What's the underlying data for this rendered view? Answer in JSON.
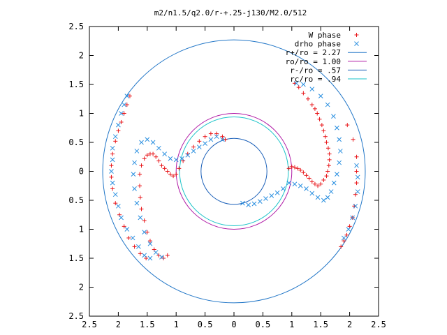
{
  "chart_data": {
    "type": "scatter",
    "title": "m2/n1.5/q2.0/r-+.25-j130/M2.0/512",
    "xlabel": "",
    "ylabel": "",
    "xlim": [
      -2.5,
      2.5
    ],
    "ylim": [
      -2.5,
      2.5
    ],
    "x_ticks": [
      -2.5,
      -2,
      -1.5,
      -1,
      -0.5,
      0,
      0.5,
      1,
      1.5,
      2,
      2.5
    ],
    "x_tick_labels": [
      "2.5",
      "2",
      "1.5",
      "1",
      "0.5",
      "0",
      "0.5",
      "1",
      "1.5",
      "2",
      "2.5"
    ],
    "y_ticks": [
      2.5,
      2,
      1.5,
      1,
      0.5,
      0,
      -0.5,
      -1,
      -1.5,
      -2,
      -2.5
    ],
    "y_tick_labels": [
      "2.5",
      "2",
      "1.5",
      "1",
      "0.5",
      "0",
      "0.5",
      "1",
      "1.5",
      "2",
      "2.5"
    ],
    "grid": false,
    "legend_position": "top-right",
    "legend": [
      {
        "label": "W phase",
        "kind": "point",
        "symbol": "plus",
        "color": "#e8161a"
      },
      {
        "label": "drho phase",
        "kind": "point",
        "symbol": "cross",
        "color": "#2a8fe0"
      },
      {
        "label": "r+/ro = 2.27",
        "kind": "line",
        "color": "#2176c7"
      },
      {
        "label": "ro/ro = 1.00",
        "kind": "line",
        "color": "#b01aa6"
      },
      {
        "label": "r-/ro = .57",
        "kind": "line",
        "color": "#1a5fb8"
      },
      {
        "label": "rc/ro = .94",
        "kind": "line",
        "color": "#19c3c8"
      }
    ],
    "circles": [
      {
        "name": "r+/ro",
        "radius": 2.27,
        "color": "#2176c7"
      },
      {
        "name": "ro/ro",
        "radius": 1.0,
        "color": "#b01aa6"
      },
      {
        "name": "r-/ro",
        "radius": 0.57,
        "color": "#1a5fb8"
      },
      {
        "name": "rc/ro",
        "radius": 0.94,
        "color": "#19c3c8"
      }
    ],
    "series": [
      {
        "name": "W phase",
        "color": "#e8161a",
        "symbol": "plus",
        "points": [
          [
            1.85,
            -1.3
          ],
          [
            1.9,
            -1.2
          ],
          [
            1.95,
            -1.1
          ],
          [
            2.0,
            -0.95
          ],
          [
            2.05,
            -0.8
          ],
          [
            2.08,
            -0.6
          ],
          [
            2.1,
            -0.4
          ],
          [
            2.12,
            -0.2
          ],
          [
            2.12,
            0.0
          ],
          [
            2.12,
            0.25
          ],
          [
            2.06,
            0.55
          ],
          [
            1.96,
            0.8
          ],
          [
            0.95,
            0.05
          ],
          [
            1.0,
            0.08
          ],
          [
            1.05,
            0.07
          ],
          [
            1.1,
            0.05
          ],
          [
            1.15,
            0.02
          ],
          [
            1.2,
            -0.02
          ],
          [
            1.25,
            -0.07
          ],
          [
            1.3,
            -0.12
          ],
          [
            1.35,
            -0.18
          ],
          [
            1.4,
            -0.22
          ],
          [
            1.45,
            -0.25
          ],
          [
            1.5,
            -0.22
          ],
          [
            1.55,
            -0.15
          ],
          [
            1.6,
            -0.08
          ],
          [
            1.62,
            0.0
          ],
          [
            1.64,
            0.1
          ],
          [
            1.65,
            0.2
          ],
          [
            1.65,
            0.3
          ],
          [
            1.63,
            0.4
          ],
          [
            1.6,
            0.5
          ],
          [
            1.58,
            0.6
          ],
          [
            1.55,
            0.7
          ],
          [
            1.52,
            0.8
          ],
          [
            1.48,
            0.9
          ],
          [
            1.44,
            1.0
          ],
          [
            1.4,
            1.08
          ],
          [
            1.35,
            1.15
          ],
          [
            1.28,
            1.25
          ],
          [
            1.2,
            1.35
          ],
          [
            1.12,
            1.45
          ],
          [
            1.05,
            1.52
          ],
          [
            -0.15,
            0.55
          ],
          [
            -0.2,
            0.6
          ],
          [
            -0.3,
            0.65
          ],
          [
            -0.4,
            0.65
          ],
          [
            -0.5,
            0.6
          ],
          [
            -0.6,
            0.52
          ],
          [
            -0.7,
            0.42
          ],
          [
            -0.8,
            0.3
          ],
          [
            -0.88,
            0.18
          ],
          [
            -0.95,
            0.05
          ],
          [
            -1.0,
            -0.05
          ],
          [
            -1.05,
            -0.08
          ],
          [
            -1.1,
            -0.05
          ],
          [
            -1.15,
            0.0
          ],
          [
            -1.2,
            0.05
          ],
          [
            -1.25,
            0.1
          ],
          [
            -1.3,
            0.18
          ],
          [
            -1.35,
            0.25
          ],
          [
            -1.4,
            0.3
          ],
          [
            -1.45,
            0.3
          ],
          [
            -1.5,
            0.28
          ],
          [
            -1.55,
            0.22
          ],
          [
            -1.6,
            0.1
          ],
          [
            -1.63,
            -0.05
          ],
          [
            -1.63,
            -0.25
          ],
          [
            -1.62,
            -0.45
          ],
          [
            -1.6,
            -0.65
          ],
          [
            -1.55,
            -0.85
          ],
          [
            -1.5,
            -1.05
          ],
          [
            -1.45,
            -1.2
          ],
          [
            -1.38,
            -1.35
          ],
          [
            -1.3,
            -1.45
          ],
          [
            -1.22,
            -1.5
          ],
          [
            -1.15,
            -1.45
          ],
          [
            -1.8,
            1.3
          ],
          [
            -1.85,
            1.15
          ],
          [
            -1.9,
            1.0
          ],
          [
            -1.95,
            0.85
          ],
          [
            -2.0,
            0.7
          ],
          [
            -2.05,
            0.52
          ],
          [
            -2.1,
            0.3
          ],
          [
            -2.12,
            0.1
          ],
          [
            -2.12,
            -0.1
          ],
          [
            -2.1,
            -0.3
          ],
          [
            -2.05,
            -0.55
          ],
          [
            -1.98,
            -0.75
          ],
          [
            -1.9,
            -0.95
          ],
          [
            -1.82,
            -1.15
          ],
          [
            -1.72,
            -1.3
          ],
          [
            -1.62,
            -1.42
          ],
          [
            -1.52,
            -1.5
          ]
        ]
      },
      {
        "name": "drho phase",
        "color": "#2a8fe0",
        "symbol": "cross",
        "points": [
          [
            0.15,
            -0.55
          ],
          [
            0.25,
            -0.58
          ],
          [
            0.35,
            -0.56
          ],
          [
            0.45,
            -0.52
          ],
          [
            0.55,
            -0.47
          ],
          [
            0.65,
            -0.42
          ],
          [
            0.75,
            -0.37
          ],
          [
            0.85,
            -0.3
          ],
          [
            0.95,
            -0.2
          ],
          [
            1.05,
            -0.22
          ],
          [
            1.15,
            -0.25
          ],
          [
            1.25,
            -0.3
          ],
          [
            1.35,
            -0.38
          ],
          [
            1.45,
            -0.45
          ],
          [
            1.55,
            -0.5
          ],
          [
            1.62,
            -0.45
          ],
          [
            1.68,
            -0.35
          ],
          [
            1.73,
            -0.2
          ],
          [
            1.78,
            -0.05
          ],
          [
            1.82,
            0.15
          ],
          [
            1.84,
            0.35
          ],
          [
            1.82,
            0.55
          ],
          [
            1.78,
            0.75
          ],
          [
            1.72,
            0.95
          ],
          [
            1.62,
            1.15
          ],
          [
            1.5,
            1.3
          ],
          [
            1.35,
            1.42
          ],
          [
            1.2,
            1.5
          ],
          [
            1.08,
            1.52
          ],
          [
            1.9,
            -1.15
          ],
          [
            1.98,
            -1.0
          ],
          [
            2.05,
            -0.8
          ],
          [
            2.1,
            -0.6
          ],
          [
            2.14,
            -0.35
          ],
          [
            2.14,
            -0.1
          ],
          [
            2.12,
            0.1
          ],
          [
            -0.2,
            0.55
          ],
          [
            -0.3,
            0.6
          ],
          [
            -0.4,
            0.55
          ],
          [
            -0.5,
            0.48
          ],
          [
            -0.6,
            0.42
          ],
          [
            -0.7,
            0.35
          ],
          [
            -0.8,
            0.28
          ],
          [
            -0.9,
            0.22
          ],
          [
            -1.0,
            0.2
          ],
          [
            -1.1,
            0.22
          ],
          [
            -1.2,
            0.3
          ],
          [
            -1.3,
            0.4
          ],
          [
            -1.4,
            0.5
          ],
          [
            -1.5,
            0.55
          ],
          [
            -1.6,
            0.5
          ],
          [
            -1.68,
            0.35
          ],
          [
            -1.72,
            0.15
          ],
          [
            -1.74,
            -0.05
          ],
          [
            -1.72,
            -0.3
          ],
          [
            -1.68,
            -0.55
          ],
          [
            -1.62,
            -0.8
          ],
          [
            -1.55,
            -1.05
          ],
          [
            -1.45,
            -1.25
          ],
          [
            -1.35,
            -1.4
          ],
          [
            -1.25,
            -1.48
          ],
          [
            -1.85,
            1.3
          ],
          [
            -1.9,
            1.15
          ],
          [
            -1.95,
            1.0
          ],
          [
            -2.0,
            0.8
          ],
          [
            -2.05,
            0.6
          ],
          [
            -2.1,
            0.4
          ],
          [
            -2.1,
            0.2
          ],
          [
            -2.12,
            0.0
          ],
          [
            -2.1,
            -0.2
          ],
          [
            -2.05,
            -0.4
          ],
          [
            -2.0,
            -0.6
          ],
          [
            -1.95,
            -0.8
          ],
          [
            -1.85,
            -1.0
          ],
          [
            -1.75,
            -1.15
          ],
          [
            -1.65,
            -1.3
          ],
          [
            -1.55,
            -1.45
          ],
          [
            -1.45,
            -1.5
          ]
        ]
      }
    ]
  }
}
